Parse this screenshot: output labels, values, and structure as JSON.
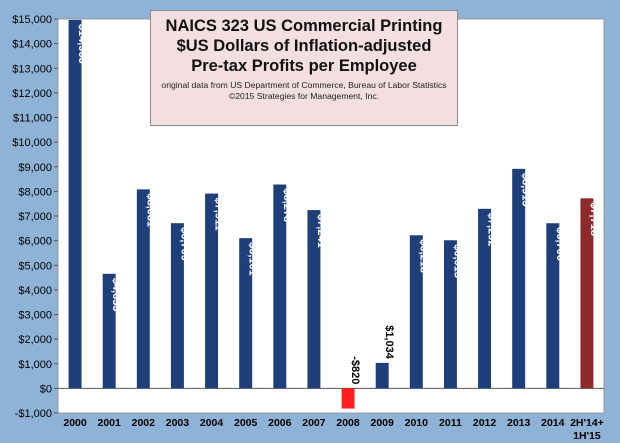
{
  "chart_data": {
    "type": "bar",
    "title_lines": [
      "NAICS 323 US Commercial Printing",
      "$US Dollars of Inflation-adjusted",
      "Pre-tax Profits per Employee"
    ],
    "notes": [
      "original data from US Department of Commerce, Bureau of Labor Statistics",
      "©2015 Strategies for Management, Inc."
    ],
    "categories": [
      "2000",
      "2001",
      "2002",
      "2003",
      "2004",
      "2005",
      "2006",
      "2007",
      "2008",
      "2009",
      "2010",
      "2011",
      "2012",
      "2013",
      "2014",
      "2H'14+ 1H'15"
    ],
    "category_labels": [
      [
        "2000"
      ],
      [
        "2001"
      ],
      [
        "2002"
      ],
      [
        "2003"
      ],
      [
        "2004"
      ],
      [
        "2005"
      ],
      [
        "2006"
      ],
      [
        "2007"
      ],
      [
        "2008"
      ],
      [
        "2009"
      ],
      [
        "2010"
      ],
      [
        "2011"
      ],
      [
        "2012"
      ],
      [
        "2013"
      ],
      [
        "2014"
      ],
      [
        "2H'14+",
        "1H'15"
      ]
    ],
    "values": [
      14963,
      4653,
      8081,
      6709,
      7911,
      6101,
      8278,
      7241,
      -820,
      1034,
      6218,
      6015,
      7292,
      8915,
      6706,
      7718
    ],
    "data_labels": [
      "$14,963",
      "$4,653",
      "$8,081",
      "$6,709",
      "$7,911",
      "$6,101",
      "$8,278",
      "$7,241",
      "-$820",
      "$1,034",
      "$6,218",
      "$6,015",
      "$7,292",
      "$8,915",
      "$6,706",
      "$7,718"
    ],
    "ylim": [
      -1000,
      15000
    ],
    "ytick_values": [
      -1000,
      0,
      1000,
      2000,
      3000,
      4000,
      5000,
      6000,
      7000,
      8000,
      9000,
      10000,
      11000,
      12000,
      13000,
      14000,
      15000
    ],
    "ytick_labels": [
      "-$1,000",
      "$0",
      "$1,000",
      "$2,000",
      "$3,000",
      "$4,000",
      "$5,000",
      "$6,000",
      "$7,000",
      "$8,000",
      "$9,000",
      "$10,000",
      "$11,000",
      "$12,000",
      "$13,000",
      "$14,000",
      "$15,000"
    ],
    "colors": {
      "positive": "#1f3f7a",
      "negative": "#ff1f1f",
      "highlight": "#8f2a2a",
      "plot_background": "#ffffff",
      "page_background": "#8fb3d6",
      "title_box": "#f3dfdf"
    },
    "highlight_index": 15,
    "grid": false
  }
}
